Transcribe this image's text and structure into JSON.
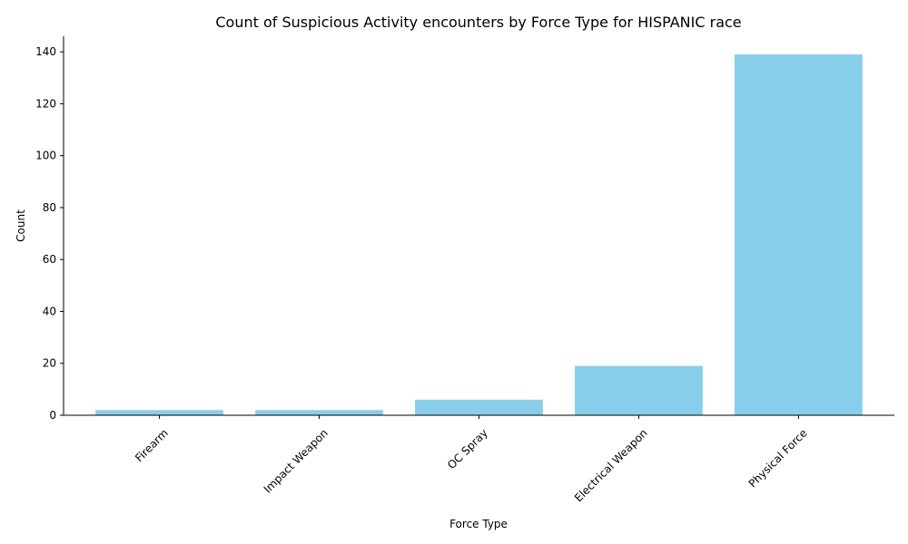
{
  "chart_data": {
    "type": "bar",
    "title": "Count of Suspicious Activity encounters by Force Type for HISPANIC race",
    "xlabel": "Force Type",
    "ylabel": "Count",
    "categories": [
      "Firearm",
      "Impact Weapon",
      "OC Spray",
      "Electrical Weapon",
      "Physical Force"
    ],
    "values": [
      2,
      2,
      6,
      19,
      139
    ],
    "ylim": [
      0,
      146
    ],
    "yticks": [
      0,
      20,
      40,
      60,
      80,
      100,
      120,
      140
    ],
    "bar_color": "#87CEEB",
    "grid": false,
    "legend": "none"
  }
}
